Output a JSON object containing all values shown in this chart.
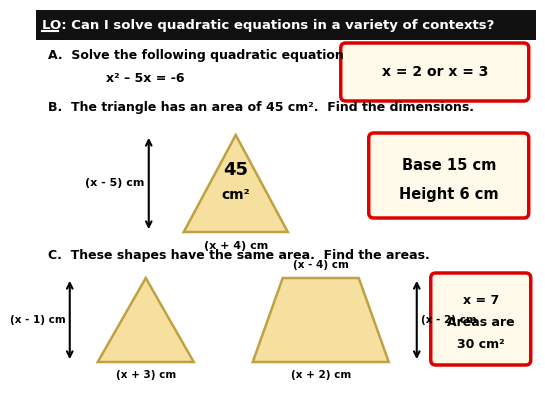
{
  "title_text": "LO: Can I solve quadratic equations in a variety of contexts?",
  "title_bg": "#111111",
  "title_color": "#ffffff",
  "bg_color": "#ffffff",
  "answer_box_bg": "#fef9e8",
  "answer_box_border": "#dd0000",
  "section_A_label": "A.  Solve the following quadratic equation",
  "section_A_eq": "x² – 5x = -6",
  "section_A_ans": "x = 2 or x = 3",
  "section_B_label": "B.  The triangle has an area of 45 cm².  Find the dimensions.",
  "section_B_left": "(x - 5) cm",
  "section_B_base": "(x + 4) cm",
  "section_B_ans1": "Base 15 cm",
  "section_B_ans2": "Height 6 cm",
  "section_C_label": "C.  These shapes have the same area.  Find the areas.",
  "section_C_tri1_left": "(x - 1) cm",
  "section_C_tri1_base": "(x + 3) cm",
  "section_C_trap_top": "(x - 4) cm",
  "section_C_trap_right": "(x - 2) cm",
  "section_C_trap_base": "(x + 2) cm",
  "section_C_ans_line1": "x = 7",
  "section_C_ans_line2": "Areas are",
  "section_C_ans_line3": "30 cm²",
  "tri_fill": "#f5e0a0",
  "tri_edge": "#c0a040"
}
